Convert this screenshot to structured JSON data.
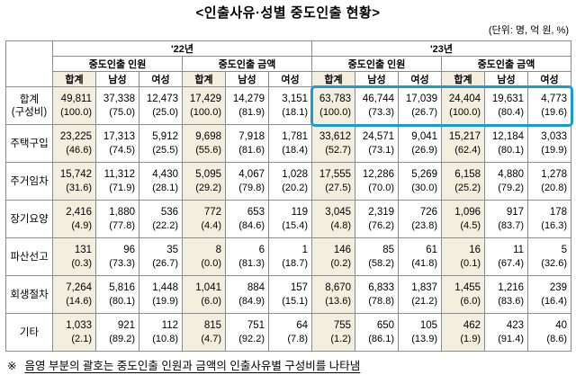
{
  "colors": {
    "highlight_box": "#189cd8",
    "shaded_column": "#f3eedd",
    "border": "#8c8c8c"
  },
  "chart_data": {
    "type": "table",
    "title": "<인출사유·성별 중도인출 현황>",
    "unit_note": "(단위: 명, 억 원, %)",
    "footnote_marker": "※",
    "footnote_text": "음영 부분의 괄호는 중도인출 인원과 금액의 인출사유별 구성비를 나타냄",
    "highlight_note": "'23년 합계(구성비) 행 전체가 파란색 박스로 강조됨",
    "column_structure": {
      "years": [
        "'22년",
        "'23년"
      ],
      "measures": [
        "중도인출 인원",
        "중도인출 금액"
      ],
      "genders": [
        "합계",
        "남성",
        "여성"
      ]
    },
    "rows": [
      {
        "label": "합계\n(구성비)",
        "cells": [
          {
            "v": "49,811",
            "p": "(100.0)"
          },
          {
            "v": "37,338",
            "p": "(75.0)"
          },
          {
            "v": "12,473",
            "p": "(25.0)"
          },
          {
            "v": "17,429",
            "p": "(100.0)"
          },
          {
            "v": "14,279",
            "p": "(81.9)"
          },
          {
            "v": "3,151",
            "p": "(18.1)"
          },
          {
            "v": "63,783",
            "p": "(100.0)"
          },
          {
            "v": "46,744",
            "p": "(73.3)"
          },
          {
            "v": "17,039",
            "p": "(26.7)"
          },
          {
            "v": "24,404",
            "p": "(100.0)"
          },
          {
            "v": "19,631",
            "p": "(80.4)"
          },
          {
            "v": "4,773",
            "p": "(19.6)"
          }
        ]
      },
      {
        "label": "주택구입",
        "cells": [
          {
            "v": "23,225",
            "p": "(46.6)"
          },
          {
            "v": "17,313",
            "p": "(74.5)"
          },
          {
            "v": "5,912",
            "p": "(25.5)"
          },
          {
            "v": "9,698",
            "p": "(55.6)"
          },
          {
            "v": "7,918",
            "p": "(81.6)"
          },
          {
            "v": "1,781",
            "p": "(18.4)"
          },
          {
            "v": "33,612",
            "p": "(52.7)"
          },
          {
            "v": "24,571",
            "p": "(73.1)"
          },
          {
            "v": "9,041",
            "p": "(26.9)"
          },
          {
            "v": "15,217",
            "p": "(62.4)"
          },
          {
            "v": "12,184",
            "p": "(80.1)"
          },
          {
            "v": "3,033",
            "p": "(19.9)"
          }
        ]
      },
      {
        "label": "주거임차",
        "cells": [
          {
            "v": "15,742",
            "p": "(31.6)"
          },
          {
            "v": "11,312",
            "p": "(71.9)"
          },
          {
            "v": "4,430",
            "p": "(28.1)"
          },
          {
            "v": "5,095",
            "p": "(29.2)"
          },
          {
            "v": "4,067",
            "p": "(79.8)"
          },
          {
            "v": "1,028",
            "p": "(20.2)"
          },
          {
            "v": "17,555",
            "p": "(27.5)"
          },
          {
            "v": "12,286",
            "p": "(70.0)"
          },
          {
            "v": "5,269",
            "p": "(30.0)"
          },
          {
            "v": "6,158",
            "p": "(25.2)"
          },
          {
            "v": "4,880",
            "p": "(79.2)"
          },
          {
            "v": "1,278",
            "p": "(20.8)"
          }
        ]
      },
      {
        "label": "장기요양",
        "cells": [
          {
            "v": "2,416",
            "p": "(4.9)"
          },
          {
            "v": "1,880",
            "p": "(77.8)"
          },
          {
            "v": "536",
            "p": "(22.2)"
          },
          {
            "v": "772",
            "p": "(4.4)"
          },
          {
            "v": "653",
            "p": "(84.6)"
          },
          {
            "v": "119",
            "p": "(15.4)"
          },
          {
            "v": "3,045",
            "p": "(4.8)"
          },
          {
            "v": "2,319",
            "p": "(76.2)"
          },
          {
            "v": "726",
            "p": "(23.8)"
          },
          {
            "v": "1,096",
            "p": "(4.5)"
          },
          {
            "v": "917",
            "p": "(83.7)"
          },
          {
            "v": "178",
            "p": "(16.3)"
          }
        ]
      },
      {
        "label": "파산선고",
        "cells": [
          {
            "v": "131",
            "p": "(0.3)"
          },
          {
            "v": "96",
            "p": "(73.3)"
          },
          {
            "v": "35",
            "p": "(26.7)"
          },
          {
            "v": "8",
            "p": "(0.0)"
          },
          {
            "v": "6",
            "p": "(81.3)"
          },
          {
            "v": "1",
            "p": "(18.7)"
          },
          {
            "v": "146",
            "p": "(0.2)"
          },
          {
            "v": "85",
            "p": "(58.2)"
          },
          {
            "v": "61",
            "p": "(41.8)"
          },
          {
            "v": "16",
            "p": "(0.1)"
          },
          {
            "v": "11",
            "p": "(67.4)"
          },
          {
            "v": "5",
            "p": "(32.6)"
          }
        ]
      },
      {
        "label": "회생절차",
        "cells": [
          {
            "v": "7,264",
            "p": "(14.6)"
          },
          {
            "v": "5,816",
            "p": "(80.1)"
          },
          {
            "v": "1,448",
            "p": "(19.9)"
          },
          {
            "v": "1,041",
            "p": "(6.0)"
          },
          {
            "v": "884",
            "p": "(84.9)"
          },
          {
            "v": "157",
            "p": "(15.1)"
          },
          {
            "v": "8,670",
            "p": "(13.6)"
          },
          {
            "v": "6,833",
            "p": "(78.8)"
          },
          {
            "v": "1,837",
            "p": "(21.2)"
          },
          {
            "v": "1,455",
            "p": "(6.0)"
          },
          {
            "v": "1,216",
            "p": "(83.6)"
          },
          {
            "v": "239",
            "p": "(16.4)"
          }
        ]
      },
      {
        "label": "기타",
        "cells": [
          {
            "v": "1,033",
            "p": "(2.1)"
          },
          {
            "v": "921",
            "p": "(89.2)"
          },
          {
            "v": "112",
            "p": "(10.8)"
          },
          {
            "v": "815",
            "p": "(4.7)"
          },
          {
            "v": "751",
            "p": "(92.2)"
          },
          {
            "v": "64",
            "p": "(7.8)"
          },
          {
            "v": "755",
            "p": "(1.2)"
          },
          {
            "v": "650",
            "p": "(86.1)"
          },
          {
            "v": "105",
            "p": "(13.9)"
          },
          {
            "v": "462",
            "p": "(1.9)"
          },
          {
            "v": "423",
            "p": "(91.4)"
          },
          {
            "v": "40",
            "p": "(8.6)"
          }
        ]
      }
    ]
  }
}
